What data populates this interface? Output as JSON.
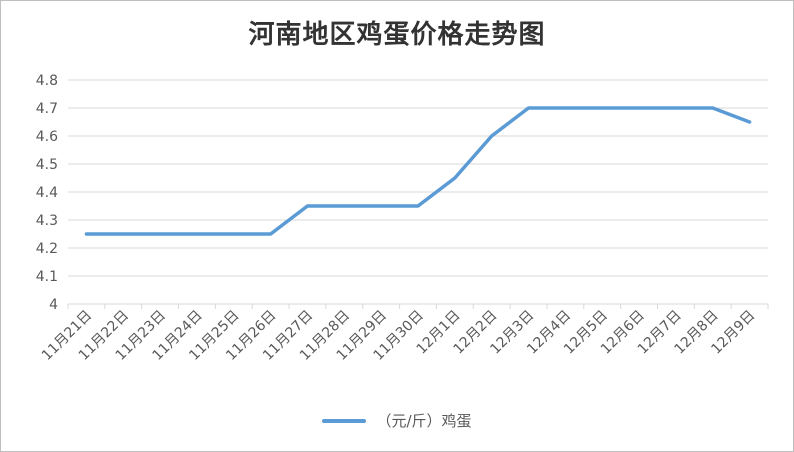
{
  "chart_data": {
    "type": "line",
    "title": "河南地区鸡蛋价格走势图",
    "xlabel": "",
    "ylabel": "",
    "categories": [
      "11月21日",
      "11月22日",
      "11月23日",
      "11月24日",
      "11月25日",
      "11月26日",
      "11月27日",
      "11月28日",
      "11月29日",
      "11月30日",
      "12月1日",
      "12月2日",
      "12月3日",
      "12月4日",
      "12月5日",
      "12月6日",
      "12月7日",
      "12月8日",
      "12月9日"
    ],
    "series": [
      {
        "name": "（元/斤）鸡蛋",
        "values": [
          4.25,
          4.25,
          4.25,
          4.25,
          4.25,
          4.25,
          4.35,
          4.35,
          4.35,
          4.35,
          4.45,
          4.6,
          4.7,
          4.7,
          4.7,
          4.7,
          4.7,
          4.7,
          4.65
        ],
        "color": "#5b9bd5"
      }
    ],
    "ylim": [
      4.0,
      4.8
    ],
    "yticks": [
      "4",
      "4.1",
      "4.2",
      "4.3",
      "4.4",
      "4.5",
      "4.6",
      "4.7",
      "4.8"
    ],
    "grid": true,
    "legend": "bottom"
  },
  "colors": {
    "grid": "#d9d9d9",
    "axis_text": "#595959"
  }
}
